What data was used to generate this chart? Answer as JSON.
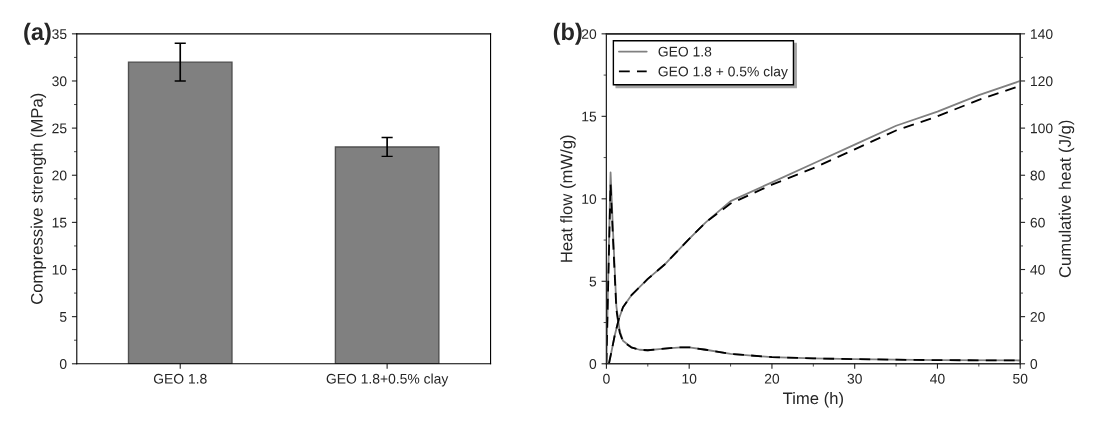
{
  "chart_data": [
    {
      "type": "bar",
      "title": "(a)",
      "ylabel": "Compressive strength (MPa)",
      "categories": [
        "GEO 1.8",
        "GEO 1.8+0.5% clay"
      ],
      "values": [
        32,
        23
      ],
      "errors": [
        2,
        1
      ],
      "color": "#808080",
      "ylim": [
        0,
        35
      ],
      "yticks": [
        0,
        5,
        10,
        15,
        20,
        25,
        30,
        35
      ],
      "grid": false,
      "legend": false
    },
    {
      "type": "line",
      "title": "(b)",
      "xlabel": "Time (h)",
      "ylabel": "Heat flow (mW/g)",
      "y2label": "Cumulative heat (J/g)",
      "xlim": [
        0,
        50
      ],
      "xticks": [
        0,
        10,
        20,
        30,
        40,
        50
      ],
      "ylim": [
        0,
        20
      ],
      "yticks": [
        0,
        5,
        10,
        15,
        20
      ],
      "y2lim": [
        0,
        140
      ],
      "y2ticks": [
        0,
        20,
        40,
        60,
        80,
        100,
        120,
        140
      ],
      "grid": false,
      "legend": "top left",
      "marker": "none",
      "series": [
        {
          "name": "GEO 1.8",
          "color": "#808080",
          "line_style": "solid",
          "x": [
            0,
            0.2,
            0.5,
            0.8,
            1.2,
            1.6,
            2,
            3,
            4,
            5,
            7,
            9,
            10,
            12,
            15,
            20,
            25,
            30,
            40,
            50
          ],
          "values": [
            0,
            5,
            11.6,
            8,
            3.5,
            2,
            1.4,
            1.0,
            0.85,
            0.82,
            0.92,
            1.0,
            1.0,
            0.85,
            0.6,
            0.4,
            0.33,
            0.28,
            0.22,
            0.2
          ]
        },
        {
          "name": "GEO 1.8 + 0.5% clay",
          "color": "#000000",
          "line_style": "dashed",
          "x": [
            0,
            0.2,
            0.5,
            0.8,
            1.2,
            1.6,
            2,
            3,
            4,
            5,
            7,
            9,
            10,
            12,
            15,
            20,
            25,
            30,
            40,
            50
          ],
          "values": [
            0,
            4.5,
            10.9,
            7.5,
            3.3,
            1.9,
            1.35,
            1.0,
            0.85,
            0.82,
            0.92,
            1.0,
            1.0,
            0.85,
            0.6,
            0.4,
            0.33,
            0.28,
            0.22,
            0.2
          ]
        },
        {
          "color": "#808080",
          "line_style": "solid",
          "axis": "y2",
          "x": [
            0.3,
            0.6,
            1,
            1.5,
            2,
            3,
            5,
            7,
            10,
            12,
            15,
            20,
            25,
            30,
            35,
            40,
            45,
            50
          ],
          "values": [
            0,
            5,
            12,
            19,
            24,
            29,
            36,
            42,
            53,
            60,
            69,
            77,
            85,
            93,
            101,
            107,
            114,
            120
          ]
        },
        {
          "color": "#000000",
          "line_style": "dashed",
          "axis": "y2",
          "x": [
            0.3,
            0.6,
            1,
            1.5,
            2,
            3,
            5,
            7,
            10,
            12,
            15,
            20,
            25,
            30,
            35,
            40,
            45,
            50
          ],
          "values": [
            0,
            5,
            12,
            19,
            24,
            29,
            36,
            42,
            53,
            60,
            68,
            76,
            83,
            91,
            99,
            105,
            112,
            118
          ]
        }
      ]
    }
  ]
}
